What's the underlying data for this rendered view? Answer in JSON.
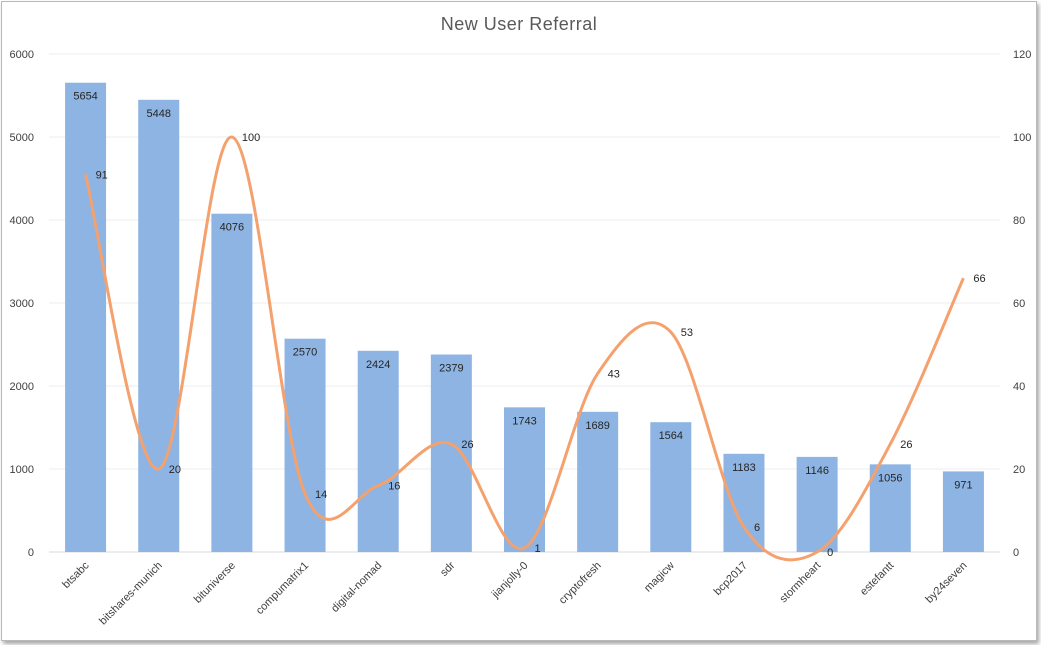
{
  "chart_data": {
    "type": "bar",
    "title": "New User Referral",
    "categories": [
      "btsabc",
      "bitshares-munich",
      "bituniverse",
      "compumatrix1",
      "digital-nomad",
      "sdr",
      "jianjolly-0",
      "cryptofresh",
      "magicw",
      "bcp2017",
      "stormheart",
      "estefantt",
      "by24seven"
    ],
    "series": [
      {
        "values": [
          5654,
          5448,
          4076,
          2570,
          2424,
          2379,
          1743,
          1689,
          1564,
          1183,
          1146,
          1056,
          971
        ],
        "chart_type": "bar",
        "axis": "primary",
        "color": "#8db4e2"
      },
      {
        "values": [
          91,
          20,
          100,
          14,
          16,
          26,
          1,
          43,
          53,
          6,
          0,
          26,
          66
        ],
        "chart_type": "line",
        "smooth": true,
        "axis": "secondary",
        "color": "#f4a16e"
      }
    ],
    "y_left": {
      "ticks": [
        0,
        1000,
        2000,
        3000,
        4000,
        5000,
        6000
      ],
      "ylim": [
        0,
        6000
      ]
    },
    "y_right": {
      "ticks": [
        0,
        20,
        40,
        60,
        80,
        100,
        120
      ],
      "ylim": [
        0,
        120
      ]
    },
    "grid": true,
    "legend": "none"
  }
}
